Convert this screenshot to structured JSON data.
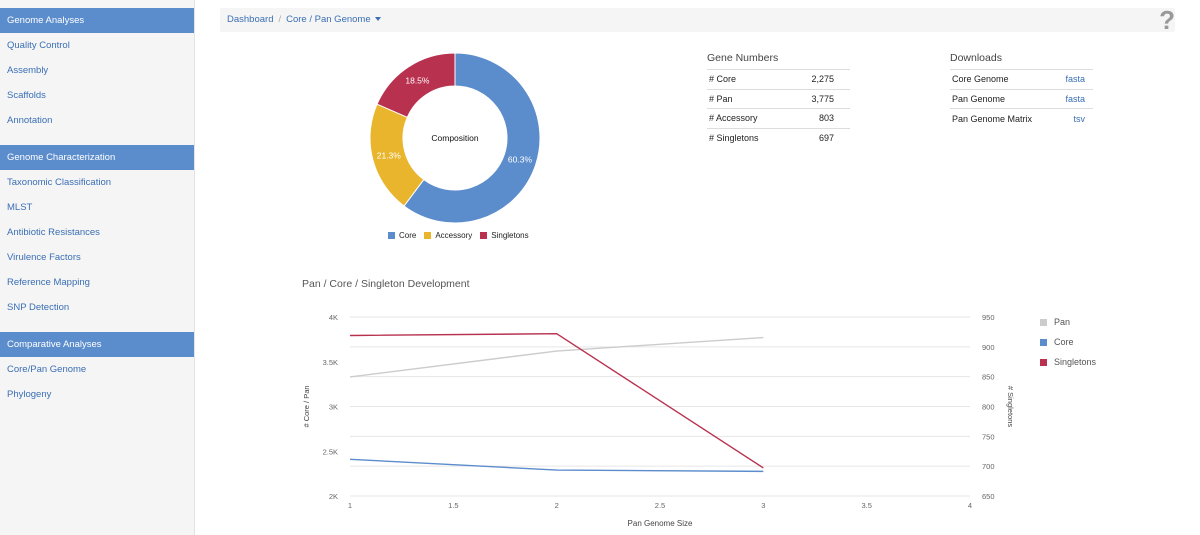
{
  "sidebar": {
    "groups": [
      {
        "title": "Genome Analyses",
        "items": [
          "Quality Control",
          "Assembly",
          "Scaffolds",
          "Annotation"
        ]
      },
      {
        "title": "Genome Characterization",
        "items": [
          "Taxonomic Classification",
          "MLST",
          "Antibiotic Resistances",
          "Virulence Factors",
          "Reference Mapping",
          "SNP Detection"
        ]
      },
      {
        "title": "Comparative Analyses",
        "items": [
          "Core/Pan Genome",
          "Phylogeny"
        ]
      }
    ]
  },
  "breadcrumb": {
    "root": "Dashboard",
    "current": "Core / Pan Genome"
  },
  "help_label": "?",
  "gene_numbers": {
    "title": "Gene Numbers",
    "rows": [
      {
        "label": "# Core",
        "value": "2,275"
      },
      {
        "label": "# Pan",
        "value": "3,775"
      },
      {
        "label": "# Accessory",
        "value": "803"
      },
      {
        "label": "# Singletons",
        "value": "697"
      }
    ]
  },
  "downloads": {
    "title": "Downloads",
    "rows": [
      {
        "label": "Core Genome",
        "link": "fasta"
      },
      {
        "label": "Pan Genome",
        "link": "fasta"
      },
      {
        "label": "Pan Genome Matrix",
        "link": "tsv"
      }
    ]
  },
  "chart_data": [
    {
      "type": "pie",
      "center_label": "Composition",
      "slices": [
        {
          "name": "Core",
          "value": 60.3,
          "label": "60.3%",
          "color": "#5b8ccc"
        },
        {
          "name": "Accessory",
          "value": 21.3,
          "label": "21.3%",
          "color": "#e8b52c"
        },
        {
          "name": "Singletons",
          "value": 18.5,
          "label": "18.5%",
          "color": "#b83250"
        }
      ],
      "legend_position": "bottom"
    },
    {
      "type": "line",
      "title": "Pan / Core / Singleton Development",
      "xlabel": "Pan Genome Size",
      "ylabel": "# Core / Pan",
      "y2label": "# Singletons",
      "xlim": [
        1,
        4
      ],
      "xticks": [
        1,
        1.5,
        2,
        2.5,
        3,
        3.5,
        4
      ],
      "ylim": [
        2000,
        4000
      ],
      "yticks": [
        2000,
        2500,
        3000,
        3500,
        4000
      ],
      "ytick_labels": [
        "2K",
        "2.5K",
        "3K",
        "3.5K",
        "4K"
      ],
      "y2lim": [
        650,
        950
      ],
      "y2ticks": [
        650,
        700,
        750,
        800,
        850,
        900,
        950
      ],
      "grid": true,
      "legend_position": "right",
      "series": [
        {
          "name": "Pan",
          "axis": "left",
          "color": "#cccccc",
          "x": [
            1,
            2,
            3
          ],
          "y": [
            3330,
            3620,
            3770
          ]
        },
        {
          "name": "Core",
          "axis": "left",
          "color": "#5b8ccc",
          "x": [
            1,
            2,
            3
          ],
          "y": [
            2410,
            2290,
            2275
          ]
        },
        {
          "name": "Singletons",
          "axis": "right",
          "color": "#b83250",
          "x": [
            1,
            2,
            3
          ],
          "y": [
            919,
            922,
            697
          ]
        }
      ]
    }
  ]
}
